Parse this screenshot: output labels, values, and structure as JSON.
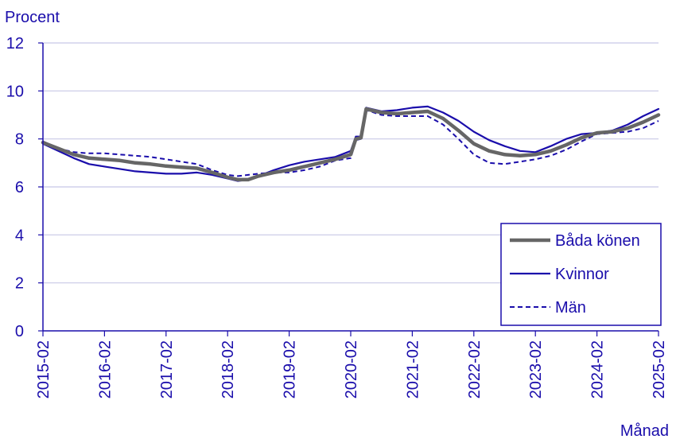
{
  "chart_data": {
    "type": "line",
    "ylabel": "Procent",
    "xlabel": "Månad",
    "ylim": [
      0,
      12
    ],
    "yticks": [
      "0",
      "2",
      "4",
      "6",
      "8",
      "10",
      "12"
    ],
    "x_tick_labels": [
      "2015-02",
      "2016-02",
      "2017-02",
      "2018-02",
      "2019-02",
      "2020-02",
      "2021-02",
      "2022-02",
      "2023-02",
      "2024-02",
      "2025-02"
    ],
    "grid": "horizontal",
    "legend_position": "right",
    "colors": {
      "axis_text": "#1a0dab",
      "grid": "#c8c8e6",
      "baseline": "#1a0dab"
    },
    "series": [
      {
        "name": "Båda könen",
        "color": "#666666",
        "style": "thick",
        "points": [
          [
            "2015-02",
            7.85
          ],
          [
            "2015-05",
            7.6
          ],
          [
            "2015-08",
            7.35
          ],
          [
            "2015-11",
            7.2
          ],
          [
            "2016-02",
            7.15
          ],
          [
            "2016-05",
            7.1
          ],
          [
            "2016-08",
            7.0
          ],
          [
            "2016-11",
            6.95
          ],
          [
            "2017-02",
            6.87
          ],
          [
            "2017-05",
            6.82
          ],
          [
            "2017-08",
            6.78
          ],
          [
            "2017-11",
            6.6
          ],
          [
            "2018-02",
            6.4
          ],
          [
            "2018-04",
            6.3
          ],
          [
            "2018-06",
            6.3
          ],
          [
            "2018-08",
            6.45
          ],
          [
            "2018-11",
            6.6
          ],
          [
            "2019-02",
            6.7
          ],
          [
            "2019-05",
            6.85
          ],
          [
            "2019-08",
            7.0
          ],
          [
            "2019-11",
            7.15
          ],
          [
            "2020-02",
            7.35
          ],
          [
            "2020-03",
            8.0
          ],
          [
            "2020-04",
            8.05
          ],
          [
            "2020-05",
            9.25
          ],
          [
            "2020-08",
            9.1
          ],
          [
            "2020-11",
            9.05
          ],
          [
            "2021-02",
            9.1
          ],
          [
            "2021-05",
            9.15
          ],
          [
            "2021-08",
            8.85
          ],
          [
            "2021-11",
            8.35
          ],
          [
            "2022-02",
            7.8
          ],
          [
            "2022-05",
            7.5
          ],
          [
            "2022-08",
            7.35
          ],
          [
            "2022-11",
            7.3
          ],
          [
            "2023-02",
            7.35
          ],
          [
            "2023-05",
            7.5
          ],
          [
            "2023-08",
            7.75
          ],
          [
            "2023-11",
            8.05
          ],
          [
            "2024-02",
            8.25
          ],
          [
            "2024-05",
            8.3
          ],
          [
            "2024-08",
            8.45
          ],
          [
            "2024-11",
            8.7
          ],
          [
            "2025-02",
            9.0
          ]
        ]
      },
      {
        "name": "Kvinnor",
        "color": "#1a0dab",
        "style": "solid",
        "points": [
          [
            "2015-02",
            7.8
          ],
          [
            "2015-05",
            7.5
          ],
          [
            "2015-08",
            7.2
          ],
          [
            "2015-11",
            6.95
          ],
          [
            "2016-02",
            6.85
          ],
          [
            "2016-05",
            6.75
          ],
          [
            "2016-08",
            6.65
          ],
          [
            "2016-11",
            6.6
          ],
          [
            "2017-02",
            6.55
          ],
          [
            "2017-05",
            6.55
          ],
          [
            "2017-08",
            6.6
          ],
          [
            "2017-11",
            6.5
          ],
          [
            "2018-02",
            6.35
          ],
          [
            "2018-04",
            6.25
          ],
          [
            "2018-06",
            6.3
          ],
          [
            "2018-08",
            6.45
          ],
          [
            "2018-11",
            6.7
          ],
          [
            "2019-02",
            6.9
          ],
          [
            "2019-05",
            7.05
          ],
          [
            "2019-08",
            7.15
          ],
          [
            "2019-11",
            7.25
          ],
          [
            "2020-02",
            7.5
          ],
          [
            "2020-03",
            8.1
          ],
          [
            "2020-04",
            8.1
          ],
          [
            "2020-05",
            9.3
          ],
          [
            "2020-08",
            9.15
          ],
          [
            "2020-11",
            9.2
          ],
          [
            "2021-02",
            9.3
          ],
          [
            "2021-05",
            9.35
          ],
          [
            "2021-08",
            9.1
          ],
          [
            "2021-11",
            8.75
          ],
          [
            "2022-02",
            8.3
          ],
          [
            "2022-05",
            7.95
          ],
          [
            "2022-08",
            7.7
          ],
          [
            "2022-11",
            7.5
          ],
          [
            "2023-02",
            7.45
          ],
          [
            "2023-05",
            7.7
          ],
          [
            "2023-08",
            8.0
          ],
          [
            "2023-11",
            8.2
          ],
          [
            "2024-02",
            8.25
          ],
          [
            "2024-05",
            8.35
          ],
          [
            "2024-08",
            8.6
          ],
          [
            "2024-11",
            8.95
          ],
          [
            "2025-02",
            9.25
          ]
        ]
      },
      {
        "name": "Män",
        "color": "#1a0dab",
        "style": "dashed",
        "points": [
          [
            "2015-02",
            7.9
          ],
          [
            "2015-05",
            7.6
          ],
          [
            "2015-08",
            7.45
          ],
          [
            "2015-11",
            7.4
          ],
          [
            "2016-02",
            7.4
          ],
          [
            "2016-05",
            7.35
          ],
          [
            "2016-08",
            7.3
          ],
          [
            "2016-11",
            7.25
          ],
          [
            "2017-02",
            7.15
          ],
          [
            "2017-05",
            7.05
          ],
          [
            "2017-08",
            6.95
          ],
          [
            "2017-11",
            6.7
          ],
          [
            "2018-02",
            6.5
          ],
          [
            "2018-04",
            6.45
          ],
          [
            "2018-06",
            6.5
          ],
          [
            "2018-08",
            6.55
          ],
          [
            "2018-11",
            6.6
          ],
          [
            "2019-02",
            6.6
          ],
          [
            "2019-05",
            6.7
          ],
          [
            "2019-08",
            6.85
          ],
          [
            "2019-11",
            7.1
          ],
          [
            "2020-02",
            7.2
          ],
          [
            "2020-03",
            7.95
          ],
          [
            "2020-04",
            8.0
          ],
          [
            "2020-05",
            9.2
          ],
          [
            "2020-08",
            9.0
          ],
          [
            "2020-11",
            8.95
          ],
          [
            "2021-02",
            8.95
          ],
          [
            "2021-05",
            8.95
          ],
          [
            "2021-08",
            8.6
          ],
          [
            "2021-11",
            8.0
          ],
          [
            "2022-02",
            7.35
          ],
          [
            "2022-05",
            7.0
          ],
          [
            "2022-08",
            6.95
          ],
          [
            "2022-11",
            7.05
          ],
          [
            "2023-02",
            7.15
          ],
          [
            "2023-05",
            7.3
          ],
          [
            "2023-08",
            7.55
          ],
          [
            "2023-11",
            7.9
          ],
          [
            "2024-02",
            8.2
          ],
          [
            "2024-05",
            8.25
          ],
          [
            "2024-08",
            8.3
          ],
          [
            "2024-11",
            8.45
          ],
          [
            "2025-02",
            8.75
          ]
        ]
      }
    ]
  }
}
